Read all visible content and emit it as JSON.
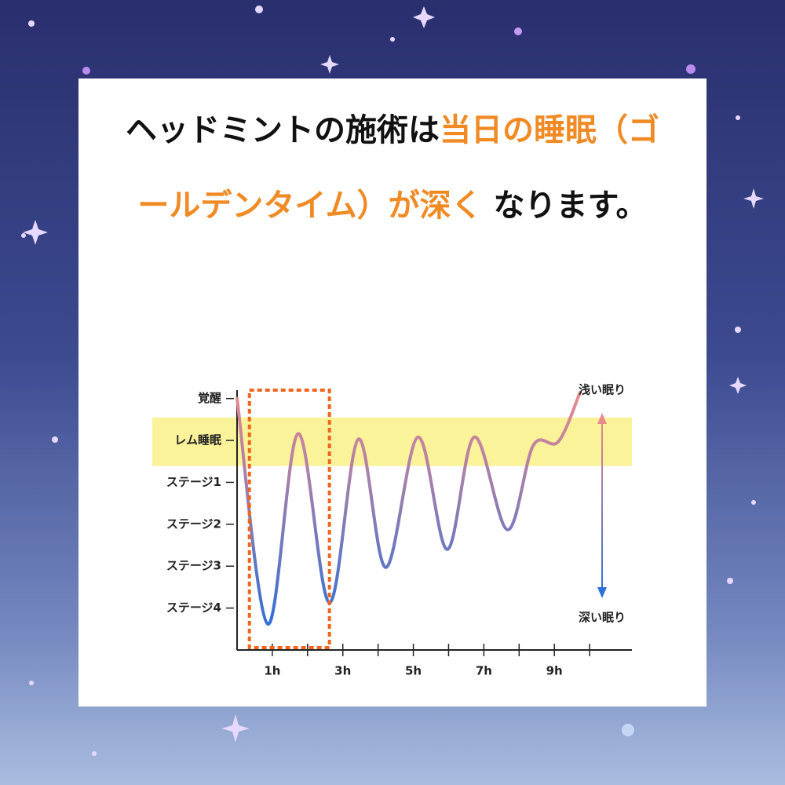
{
  "heading": {
    "parts": [
      "ヘッドミントの施術は",
      "当日の睡眠",
      "（ゴールデンタイム）が深く",
      " なります。"
    ]
  },
  "chart_data": {
    "type": "line",
    "x": [
      0,
      0.87,
      1.73,
      2.62,
      3.44,
      4.22,
      5.13,
      5.96,
      6.73,
      7.67,
      8.4,
      9.11,
      9.73
    ],
    "values": [
      5,
      -0.38,
      4.16,
      0.13,
      4.03,
      0.97,
      4.08,
      1.4,
      4.08,
      1.87,
      3.88,
      3.97,
      5.15
    ],
    "gradient": [
      "#e98a8f",
      "#2f6fd8"
    ],
    "xlim": [
      0,
      11.2
    ],
    "xticks": [
      {
        "value": 1,
        "label": "1h"
      },
      {
        "value": 3,
        "label": "3h"
      },
      {
        "value": 5,
        "label": "5h"
      },
      {
        "value": 7,
        "label": "7h"
      },
      {
        "value": 9,
        "label": "9h"
      }
    ],
    "xminor_ticks": [
      2,
      4,
      6,
      8,
      10
    ],
    "ylim": [
      -1,
      5.2
    ],
    "yticks": [
      {
        "value": 5,
        "label": "覚醒"
      },
      {
        "value": 4,
        "label": "レム睡眠"
      },
      {
        "value": 3,
        "label": "ステージ1"
      },
      {
        "value": 2,
        "label": "ステージ2"
      },
      {
        "value": 1,
        "label": "ステージ3"
      },
      {
        "value": 0,
        "label": "ステージ4"
      }
    ],
    "band": {
      "range": [
        3.39,
        4.55
      ],
      "color": "#fbf39a"
    },
    "box": {
      "x": [
        0.35,
        2.62
      ],
      "color": "#f0641e"
    },
    "annotations": {
      "top": "浅い眠り",
      "bottom": "深い眠り"
    }
  }
}
